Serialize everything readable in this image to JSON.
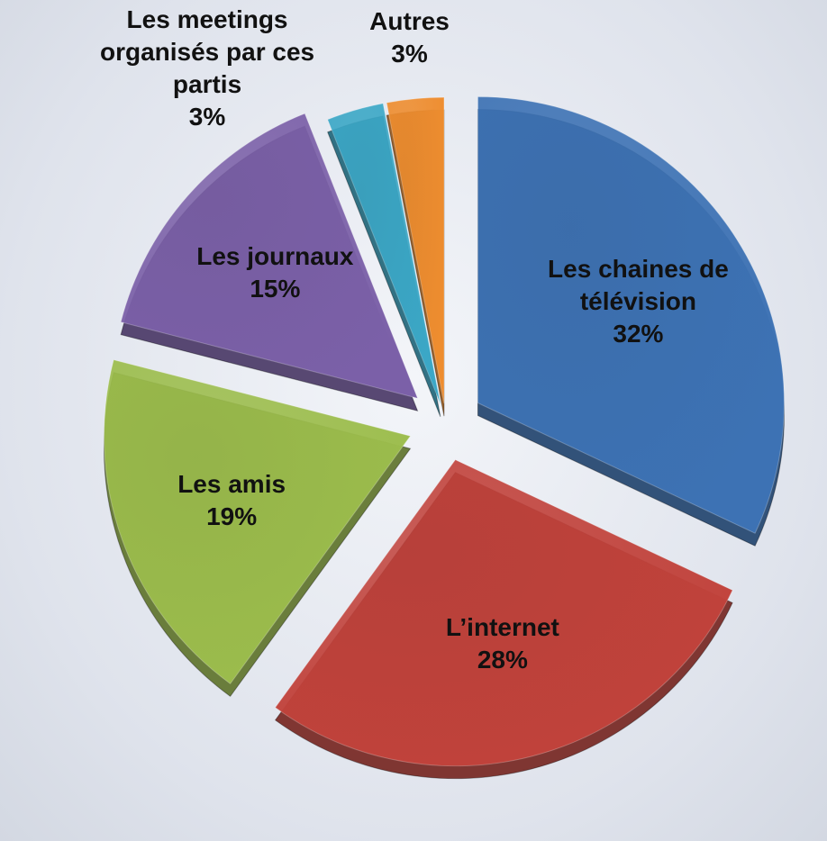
{
  "chart_data": {
    "type": "pie",
    "categories": [
      "Les chaines de télévision",
      "L’internet",
      "Les amis",
      "Les journaux",
      "Les meetings organisés par ces partis",
      "Autres"
    ],
    "values": [
      32,
      28,
      19,
      15,
      3,
      3
    ],
    "value_labels": [
      "32%",
      "28%",
      "19%",
      "15%",
      "3%",
      "3%"
    ],
    "colors": [
      "#3d72b4",
      "#c1423b",
      "#9cbd4c",
      "#7b60a8",
      "#3ba7c6",
      "#ee8d2f"
    ]
  }
}
